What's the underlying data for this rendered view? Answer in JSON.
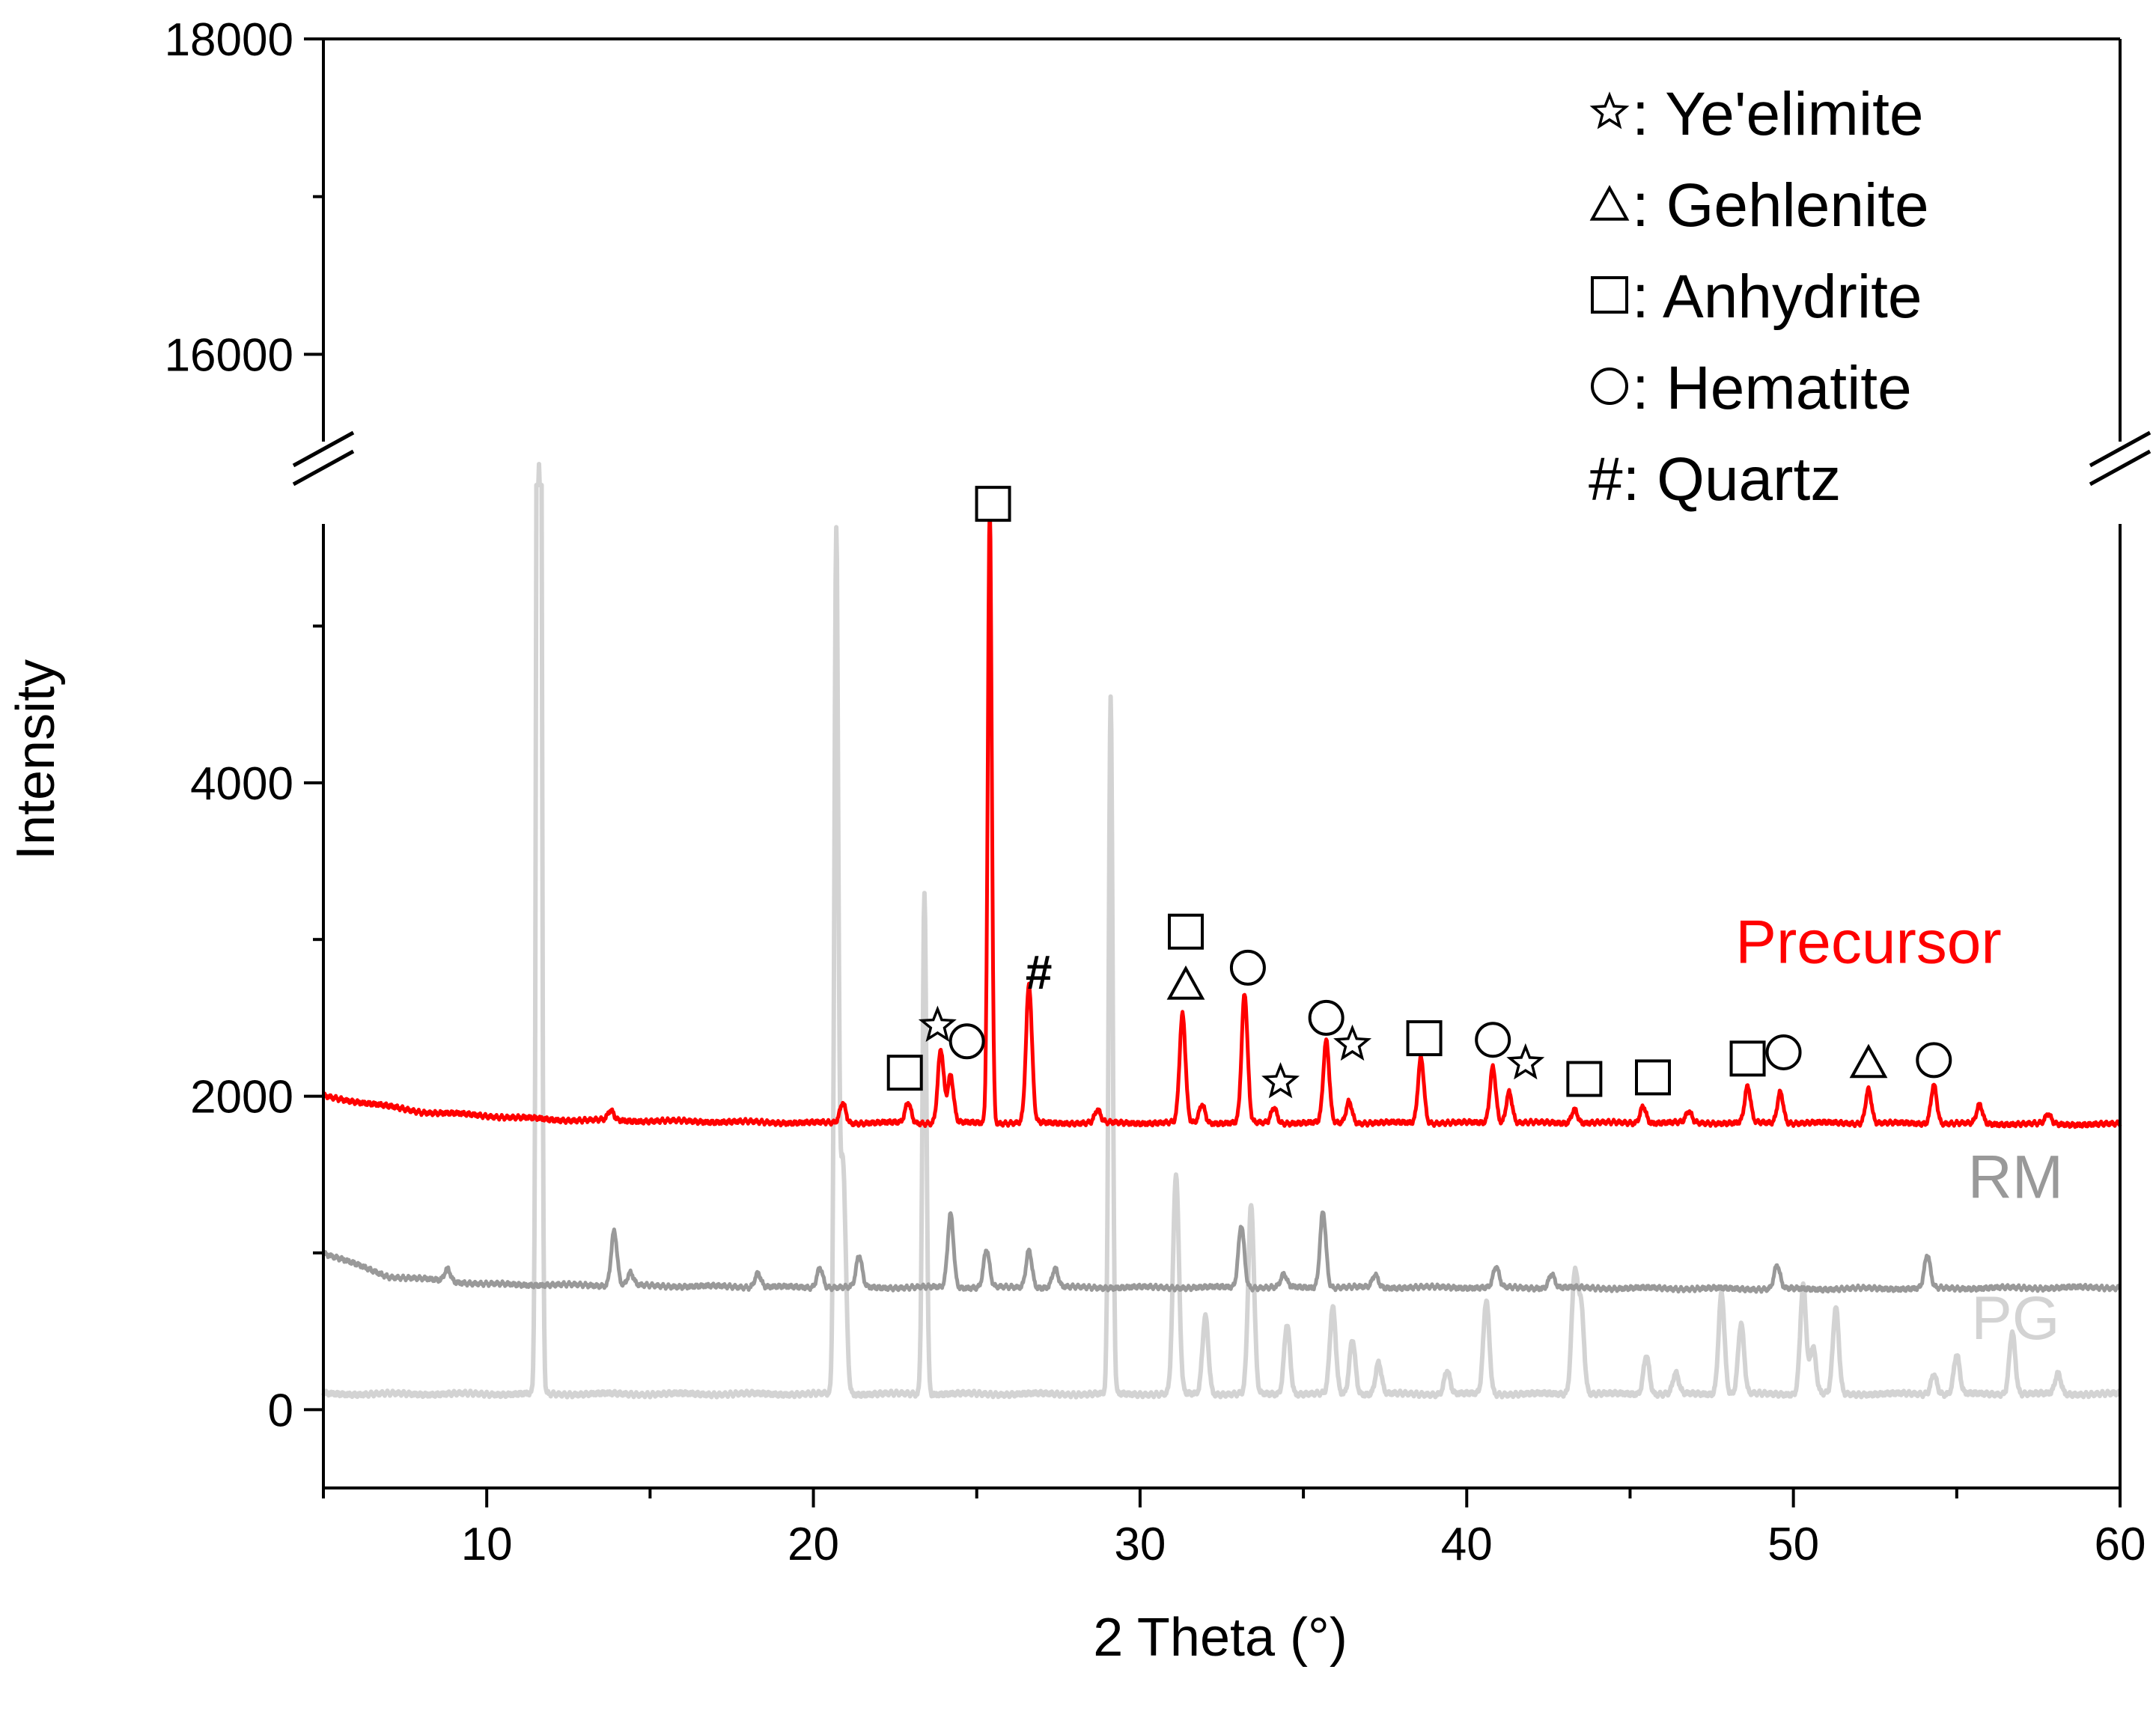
{
  "chart_data": {
    "type": "line",
    "title": "",
    "xlabel": "2 Theta (°)",
    "ylabel": "Intensity",
    "xlim": [
      5,
      60
    ],
    "ylim": [
      -500,
      18000
    ],
    "axis_break": [
      5900,
      15200
    ],
    "x_ticks": [
      10,
      20,
      30,
      40,
      50,
      60
    ],
    "y_ticks": [
      0,
      2000,
      4000,
      16000,
      18000
    ],
    "legend": [
      {
        "symbol": "star",
        "text": ": Ye'elimite"
      },
      {
        "symbol": "triangle",
        "text": ": Gehlenite"
      },
      {
        "symbol": "square",
        "text": ": Anhydrite"
      },
      {
        "symbol": "circle",
        "text": ": Hematite"
      },
      {
        "symbol": "hash",
        "text": "#: Quartz"
      }
    ],
    "series": [
      {
        "name": "Precursor",
        "color": "#ff0000",
        "baseline": [
          [
            5,
            2000
          ],
          [
            8,
            1900
          ],
          [
            12,
            1850
          ],
          [
            20,
            1830
          ],
          [
            30,
            1830
          ],
          [
            40,
            1830
          ],
          [
            50,
            1830
          ],
          [
            60,
            1820
          ]
        ],
        "peaks": [
          [
            13.8,
            60
          ],
          [
            20.9,
            130
          ],
          [
            22.9,
            130
          ],
          [
            23.9,
            470
          ],
          [
            24.2,
            300
          ],
          [
            25.4,
            3950
          ],
          [
            26.6,
            880
          ],
          [
            28.7,
            80
          ],
          [
            31.3,
            690
          ],
          [
            31.9,
            120
          ],
          [
            33.2,
            820
          ],
          [
            34.1,
            100
          ],
          [
            35.7,
            520
          ],
          [
            36.4,
            140
          ],
          [
            38.6,
            420
          ],
          [
            40.8,
            360
          ],
          [
            41.3,
            200
          ],
          [
            43.3,
            90
          ],
          [
            45.4,
            110
          ],
          [
            46.8,
            70
          ],
          [
            48.6,
            230
          ],
          [
            49.6,
            200
          ],
          [
            52.3,
            220
          ],
          [
            54.3,
            250
          ],
          [
            55.7,
            120
          ],
          [
            57.8,
            60
          ]
        ]
      },
      {
        "name": "RM",
        "color": "#999999",
        "baseline": [
          [
            5,
            1000
          ],
          [
            7,
            850
          ],
          [
            10,
            800
          ],
          [
            20,
            780
          ],
          [
            30,
            780
          ],
          [
            40,
            780
          ],
          [
            50,
            770
          ],
          [
            60,
            780
          ]
        ],
        "peaks": [
          [
            8.8,
            80
          ],
          [
            13.9,
            350
          ],
          [
            14.4,
            80
          ],
          [
            18.3,
            90
          ],
          [
            20.2,
            130
          ],
          [
            21.4,
            200
          ],
          [
            24.2,
            470
          ],
          [
            25.3,
            240
          ],
          [
            26.6,
            240
          ],
          [
            27.4,
            120
          ],
          [
            33.1,
            400
          ],
          [
            34.4,
            80
          ],
          [
            35.6,
            490
          ],
          [
            37.2,
            80
          ],
          [
            40.9,
            130
          ],
          [
            42.6,
            90
          ],
          [
            49.5,
            150
          ],
          [
            54.1,
            210
          ]
        ]
      },
      {
        "name": "PG",
        "color": "#d3d3d3",
        "baseline": [
          [
            5,
            100
          ],
          [
            60,
            100
          ]
        ],
        "peaks": [
          [
            11.6,
            15200
          ],
          [
            20.7,
            5400
          ],
          [
            20.9,
            1500
          ],
          [
            23.4,
            3200
          ],
          [
            29.1,
            4450
          ],
          [
            31.1,
            1400
          ],
          [
            32.0,
            500
          ],
          [
            33.4,
            1200
          ],
          [
            34.5,
            450
          ],
          [
            35.9,
            550
          ],
          [
            36.5,
            350
          ],
          [
            37.3,
            200
          ],
          [
            39.4,
            150
          ],
          [
            40.6,
            600
          ],
          [
            43.3,
            750
          ],
          [
            43.5,
            550
          ],
          [
            45.5,
            250
          ],
          [
            46.4,
            130
          ],
          [
            47.8,
            650
          ],
          [
            48.4,
            450
          ],
          [
            50.3,
            700
          ],
          [
            50.6,
            300
          ],
          [
            51.3,
            550
          ],
          [
            54.3,
            130
          ],
          [
            55.0,
            250
          ],
          [
            56.7,
            400
          ],
          [
            58.1,
            130
          ]
        ]
      }
    ],
    "annotations": [
      {
        "symbol": "square",
        "x": 25.5,
        "y": 5780
      },
      {
        "symbol": "hash",
        "x": 26.9,
        "y": 2800
      },
      {
        "symbol": "star",
        "x": 23.8,
        "y": 2450
      },
      {
        "symbol": "circle",
        "x": 24.7,
        "y": 2350
      },
      {
        "symbol": "square",
        "x": 22.8,
        "y": 2150
      },
      {
        "symbol": "square",
        "x": 31.4,
        "y": 3050
      },
      {
        "symbol": "triangle",
        "x": 31.4,
        "y": 2720
      },
      {
        "symbol": "circle",
        "x": 33.3,
        "y": 2820
      },
      {
        "symbol": "circle",
        "x": 35.7,
        "y": 2500
      },
      {
        "symbol": "star",
        "x": 36.5,
        "y": 2330
      },
      {
        "symbol": "star",
        "x": 34.3,
        "y": 2090
      },
      {
        "symbol": "square",
        "x": 38.7,
        "y": 2370
      },
      {
        "symbol": "circle",
        "x": 40.8,
        "y": 2360
      },
      {
        "symbol": "star",
        "x": 41.8,
        "y": 2210
      },
      {
        "symbol": "square",
        "x": 43.6,
        "y": 2110
      },
      {
        "symbol": "square",
        "x": 45.7,
        "y": 2120
      },
      {
        "symbol": "square",
        "x": 48.6,
        "y": 2240
      },
      {
        "symbol": "circle",
        "x": 49.7,
        "y": 2280
      },
      {
        "symbol": "triangle",
        "x": 52.3,
        "y": 2220
      },
      {
        "symbol": "circle",
        "x": 54.3,
        "y": 2230
      }
    ],
    "series_labels": [
      {
        "text": "Precursor",
        "color": "#ff0000",
        "x": 52.3,
        "y": 2850
      },
      {
        "text": "RM",
        "color": "#999999",
        "x": 56.8,
        "y": 1350
      },
      {
        "text": "PG",
        "color": "#d3d3d3",
        "x": 56.8,
        "y": 450
      }
    ]
  }
}
